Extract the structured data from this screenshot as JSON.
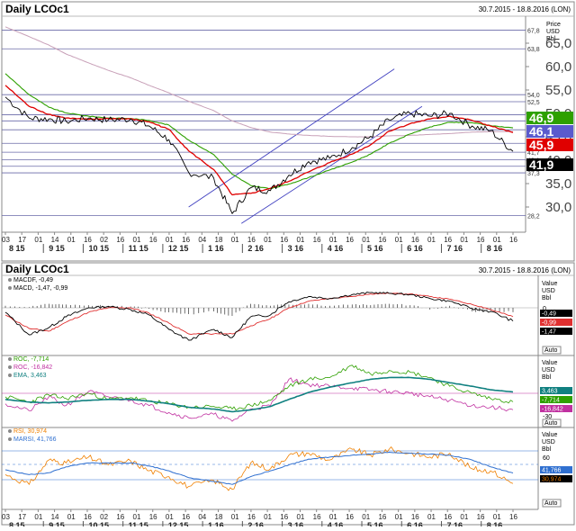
{
  "colors": {
    "price": "#000000",
    "ma_fast": "#e00000",
    "ma_mid": "#2ea000",
    "ma_slow": "#c8a0b8",
    "channel": "#4040c0",
    "fib": "#6a6aa8",
    "macd": "#000000",
    "macd_signal": "#e03030",
    "roc1": "#2ea000",
    "roc2": "#c030a0",
    "ema": "#108080",
    "rsi": "#f08000",
    "marsi": "#3070d0",
    "panel_border": "#888888",
    "label_bg_green": "#2ea000",
    "label_bg_red": "#e00000"
  },
  "top": {
    "title": "Daily LCOc1",
    "date_range": "30.7.2015 - 18.8.2016 (LON)",
    "unit_lines": [
      "Price",
      "USD",
      "Bbl"
    ],
    "price_scale": [
      "65,0",
      "60,0",
      "55,0",
      "50,0",
      "45,0",
      "40,0",
      "35,0",
      "30,0"
    ],
    "fib_labels": [
      "67,8",
      "63,8",
      "54,0",
      "52,5",
      "49,7",
      "48,4",
      "46,5",
      "43,6",
      "41,7",
      "40,1",
      "38,7",
      "37,3",
      "28,2"
    ],
    "tags": {
      "green": "46,9",
      "blue": "46,1",
      "red": "45,9",
      "black": "41,9"
    }
  },
  "macd_panel": {
    "title": "Daily LCOc1",
    "date_range": "30.7.2015 - 18.8.2016 (LON)",
    "legend": [
      "MACDF, -0,49",
      "MACD, -1,47, -0,99"
    ],
    "unit_lines": [
      "Value",
      "USD",
      "Bbl"
    ],
    "scale": [
      "0"
    ],
    "tags": {
      "t1": "-0,49",
      "t2": "-0,99",
      "t3": "-1,47"
    },
    "auto_label": "Auto"
  },
  "roc_panel": {
    "legend": [
      "ROC, -7,714",
      "ROC, -16,842",
      "EMA, 3,463"
    ],
    "unit_lines": [
      "Value",
      "USD",
      "Bbl"
    ],
    "scale": [
      "-30"
    ],
    "tags": {
      "t1": "3,463",
      "t2": "-7,714",
      "t3": "-16,842"
    },
    "auto_label": "Auto"
  },
  "rsi_panel": {
    "legend": [
      "RSI, 30,974",
      "MARSI, 41,766"
    ],
    "unit_lines": [
      "Value",
      "USD",
      "Bbl"
    ],
    "scale": [
      "60"
    ],
    "tags": {
      "t1": "41,766",
      "t2": "30,974"
    },
    "auto_label": "Auto"
  },
  "x_axis": {
    "days": [
      "03",
      "17",
      "01",
      "14",
      "01",
      "16",
      "02",
      "16",
      "01",
      "16",
      "01",
      "16",
      "04",
      "18",
      "01",
      "16",
      "01",
      "16",
      "01",
      "16",
      "01",
      "16",
      "01",
      "16",
      "01",
      "16",
      "01",
      "16",
      "01",
      "16",
      "01",
      "16"
    ],
    "months": [
      "8 15",
      "9 15",
      "10 15",
      "11 15",
      "12 15",
      "1 16",
      "2 16",
      "3 16",
      "4 16",
      "5 16",
      "6 16",
      "7 16",
      "8 16"
    ]
  },
  "chart_data": [
    {
      "type": "line",
      "title": "Daily LCOc1",
      "ylabel": "Price USD Bbl",
      "ylim": [
        25,
        70
      ],
      "x": [
        "2015-07-30",
        "2015-08-17",
        "2015-09-01",
        "2015-09-14",
        "2015-10-01",
        "2015-10-16",
        "2015-11-02",
        "2015-11-16",
        "2015-12-01",
        "2015-12-16",
        "2016-01-04",
        "2016-01-18",
        "2016-02-01",
        "2016-02-16",
        "2016-03-01",
        "2016-03-16",
        "2016-04-01",
        "2016-04-18",
        "2016-05-02",
        "2016-05-16",
        "2016-06-01",
        "2016-06-16",
        "2016-07-01",
        "2016-07-18",
        "2016-08-01",
        "2016-08-18"
      ],
      "series": [
        {
          "values": [
            53.5,
            49.0,
            48.8,
            48.3,
            49.0,
            48.6,
            48.8,
            47.3,
            44.4,
            37.4,
            36.2,
            28.6,
            34.1,
            33.5,
            36.8,
            39.7,
            40.4,
            42.7,
            45.1,
            48.6,
            50.0,
            49.4,
            50.0,
            47.3,
            46.3,
            41.9
          ]
        },
        {
          "values": [
            56.0,
            51.5,
            49.8,
            49.0,
            48.7,
            48.9,
            48.8,
            48.2,
            46.6,
            42.0,
            38.0,
            32.6,
            32.9,
            34.0,
            35.5,
            37.5,
            39.5,
            41.3,
            43.3,
            46.2,
            47.8,
            48.8,
            49.4,
            48.5,
            47.3,
            45.9
          ]
        },
        {
          "values": [
            58.5,
            54.0,
            51.3,
            50.1,
            49.4,
            49.0,
            48.9,
            48.5,
            47.5,
            44.3,
            41.2,
            37.0,
            34.6,
            33.9,
            34.9,
            36.3,
            37.9,
            39.6,
            41.3,
            43.6,
            45.6,
            47.1,
            48.1,
            48.0,
            47.4,
            46.9
          ]
        },
        {
          "values": [
            68.5,
            66.4,
            64.6,
            62.7,
            60.8,
            59.2,
            57.6,
            56.0,
            54.4,
            52.6,
            50.6,
            48.4,
            47.0,
            46.0,
            45.6,
            45.3,
            45.1,
            45.0,
            45.0,
            45.2,
            45.3,
            45.5,
            45.7,
            46.0,
            46.1,
            46.1
          ]
        }
      ]
    },
    {
      "type": "line",
      "ylim": [
        -5,
        3
      ],
      "x": [
        "2015-07-30",
        "2015-08-17",
        "2015-09-01",
        "2015-09-14",
        "2015-10-01",
        "2015-10-16",
        "2015-11-02",
        "2015-11-16",
        "2015-12-01",
        "2015-12-16",
        "2016-01-04",
        "2016-01-18",
        "2016-02-01",
        "2016-02-16",
        "2016-03-01",
        "2016-03-16",
        "2016-04-01",
        "2016-04-18",
        "2016-05-02",
        "2016-05-16",
        "2016-06-01",
        "2016-06-16",
        "2016-07-01",
        "2016-07-18",
        "2016-08-01",
        "2016-08-18"
      ],
      "series": [
        {
          "name": "MACDF",
          "values": [
            0.3,
            0.1,
            0.6,
            0.5,
            0.4,
            0.3,
            0.2,
            -0.1,
            -0.5,
            -0.7,
            -0.4,
            -0.9,
            0.6,
            0.3,
            0.5,
            0.6,
            0.3,
            0.5,
            0.4,
            0.6,
            0.4,
            -0.2,
            0.3,
            -0.4,
            -0.3,
            -0.49
          ]
        },
        {
          "name": "MACD",
          "values": [
            -0.5,
            -3.0,
            -2.2,
            -1.0,
            0.0,
            0.2,
            -0.2,
            -0.8,
            -2.4,
            -3.6,
            -2.4,
            -3.3,
            -1.0,
            -0.8,
            0.9,
            1.7,
            1.4,
            2.0,
            2.3,
            2.2,
            2.0,
            1.4,
            1.0,
            -0.1,
            -0.4,
            -1.47
          ]
        },
        {
          "name": "MACD",
          "values": [
            -0.8,
            -2.3,
            -2.6,
            -1.6,
            -0.5,
            0.0,
            0.0,
            -0.6,
            -1.7,
            -2.9,
            -2.9,
            -2.9,
            -2.0,
            -1.2,
            0.0,
            1.0,
            1.4,
            1.7,
            2.1,
            2.2,
            2.1,
            1.7,
            1.3,
            0.5,
            -0.2,
            -0.99
          ]
        }
      ]
    },
    {
      "type": "line",
      "x": [
        "2015-07-30",
        "2015-08-17",
        "2015-09-01",
        "2015-09-14",
        "2015-10-01",
        "2015-10-16",
        "2015-11-02",
        "2015-11-16",
        "2015-12-01",
        "2015-12-16",
        "2016-01-04",
        "2016-01-18",
        "2016-02-01",
        "2016-02-16",
        "2016-03-01",
        "2016-03-16",
        "2016-04-01",
        "2016-04-18",
        "2016-05-02",
        "2016-05-16",
        "2016-06-01",
        "2016-06-16",
        "2016-07-01",
        "2016-07-18",
        "2016-08-01",
        "2016-08-18"
      ],
      "series": [
        {
          "name": "ROC",
          "values": [
            -2,
            -8,
            0,
            -4,
            2,
            -5,
            -3,
            -7,
            -10,
            -14,
            -13,
            -16,
            -12,
            -6,
            10,
            18,
            20,
            34,
            24,
            28,
            26,
            20,
            10,
            2,
            -4,
            -7.714
          ]
        },
        {
          "name": "ROC",
          "values": [
            -10,
            -18,
            -2,
            -12,
            4,
            -2,
            -6,
            -12,
            -20,
            -26,
            -22,
            -30,
            -16,
            -12,
            18,
            12,
            10,
            8,
            6,
            4,
            2,
            -2,
            -6,
            -12,
            -14,
            -16.842
          ]
        },
        {
          "name": "EMA",
          "values": [
            -5,
            -8,
            -9,
            -8,
            -6,
            -5,
            -5,
            -7,
            -10,
            -14,
            -16,
            -19,
            -17,
            -13,
            -5,
            3,
            9,
            14,
            18,
            20,
            20,
            18,
            14,
            10,
            6,
            3.463
          ]
        }
      ]
    },
    {
      "type": "line",
      "x": [
        "2015-07-30",
        "2015-08-17",
        "2015-09-01",
        "2015-09-14",
        "2015-10-01",
        "2015-10-16",
        "2015-11-02",
        "2015-11-16",
        "2015-12-01",
        "2015-12-16",
        "2016-01-04",
        "2016-01-18",
        "2016-02-01",
        "2016-02-16",
        "2016-03-01",
        "2016-03-16",
        "2016-04-01",
        "2016-04-18",
        "2016-05-02",
        "2016-05-16",
        "2016-06-01",
        "2016-06-16",
        "2016-07-01",
        "2016-07-18",
        "2016-08-01",
        "2016-08-18"
      ],
      "series": [
        {
          "name": "RSI",
          "values": [
            40,
            30,
            55,
            52,
            58,
            50,
            54,
            44,
            38,
            28,
            34,
            25,
            52,
            46,
            60,
            62,
            55,
            66,
            60,
            66,
            62,
            58,
            62,
            46,
            44,
            30.974
          ]
        },
        {
          "name": "MARSI",
          "values": [
            45,
            40,
            42,
            48,
            52,
            52,
            52,
            49,
            44,
            37,
            33,
            30,
            38,
            44,
            50,
            56,
            58,
            60,
            61,
            63,
            62,
            61,
            60,
            55,
            48,
            41.766
          ]
        }
      ]
    }
  ]
}
